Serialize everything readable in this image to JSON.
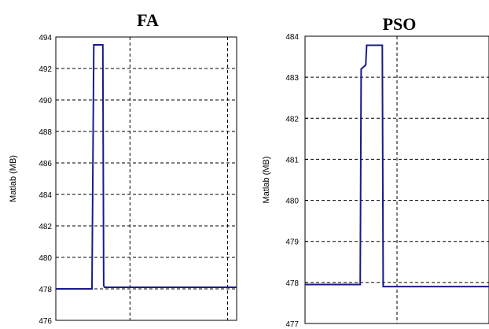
{
  "chart_data": [
    {
      "type": "line",
      "title": "FA",
      "ylabel": "Matlab (MB)",
      "xlabel": "",
      "ylim": [
        476,
        494
      ],
      "xlim": [
        0,
        10
      ],
      "yticks": [
        494,
        492,
        490,
        488,
        486,
        484,
        482,
        480,
        478,
        476
      ],
      "x_gridlines": [
        4.1,
        9.5
      ],
      "grid": true,
      "line_color": "#1a1a8c",
      "series": [
        {
          "x": [
            0,
            2.0,
            2.1,
            2.15,
            2.6,
            2.65,
            2.7,
            10
          ],
          "y": [
            478.0,
            478.0,
            493.5,
            493.5,
            493.5,
            478.2,
            478.1,
            478.1
          ]
        }
      ]
    },
    {
      "type": "line",
      "title": "PSO",
      "ylabel": "Matlab (MB)",
      "xlabel": "",
      "ylim": [
        477,
        484
      ],
      "xlim": [
        0,
        10
      ],
      "yticks": [
        484,
        483,
        482,
        481,
        480,
        479,
        478,
        477
      ],
      "x_gridlines": [
        5.0
      ],
      "grid": true,
      "line_color": "#1a1a8c",
      "series": [
        {
          "x": [
            0,
            3.0,
            3.05,
            3.3,
            3.35,
            4.2,
            4.25,
            4.3,
            10
          ],
          "y": [
            477.95,
            477.95,
            483.2,
            483.3,
            483.78,
            483.78,
            477.9,
            477.9,
            477.9
          ]
        }
      ]
    }
  ]
}
